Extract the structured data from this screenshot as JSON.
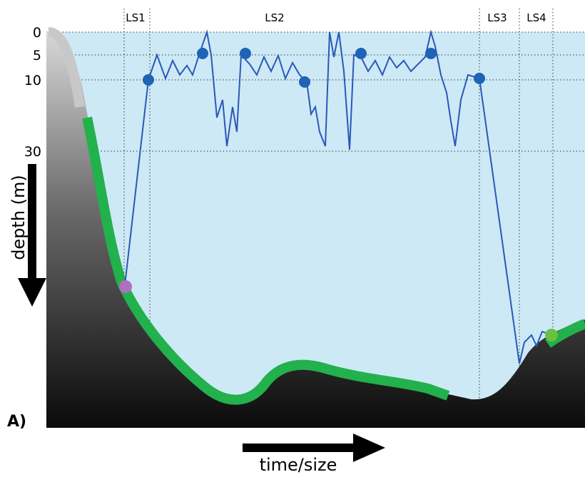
{
  "panel_label": "A)",
  "y_axis": {
    "label": "depth (m)",
    "ticks": [
      "0",
      "5",
      "10",
      "30"
    ]
  },
  "x_axis": {
    "label": "time/size"
  },
  "segments": [
    "LS1",
    "LS2",
    "LS3",
    "LS4"
  ]
}
